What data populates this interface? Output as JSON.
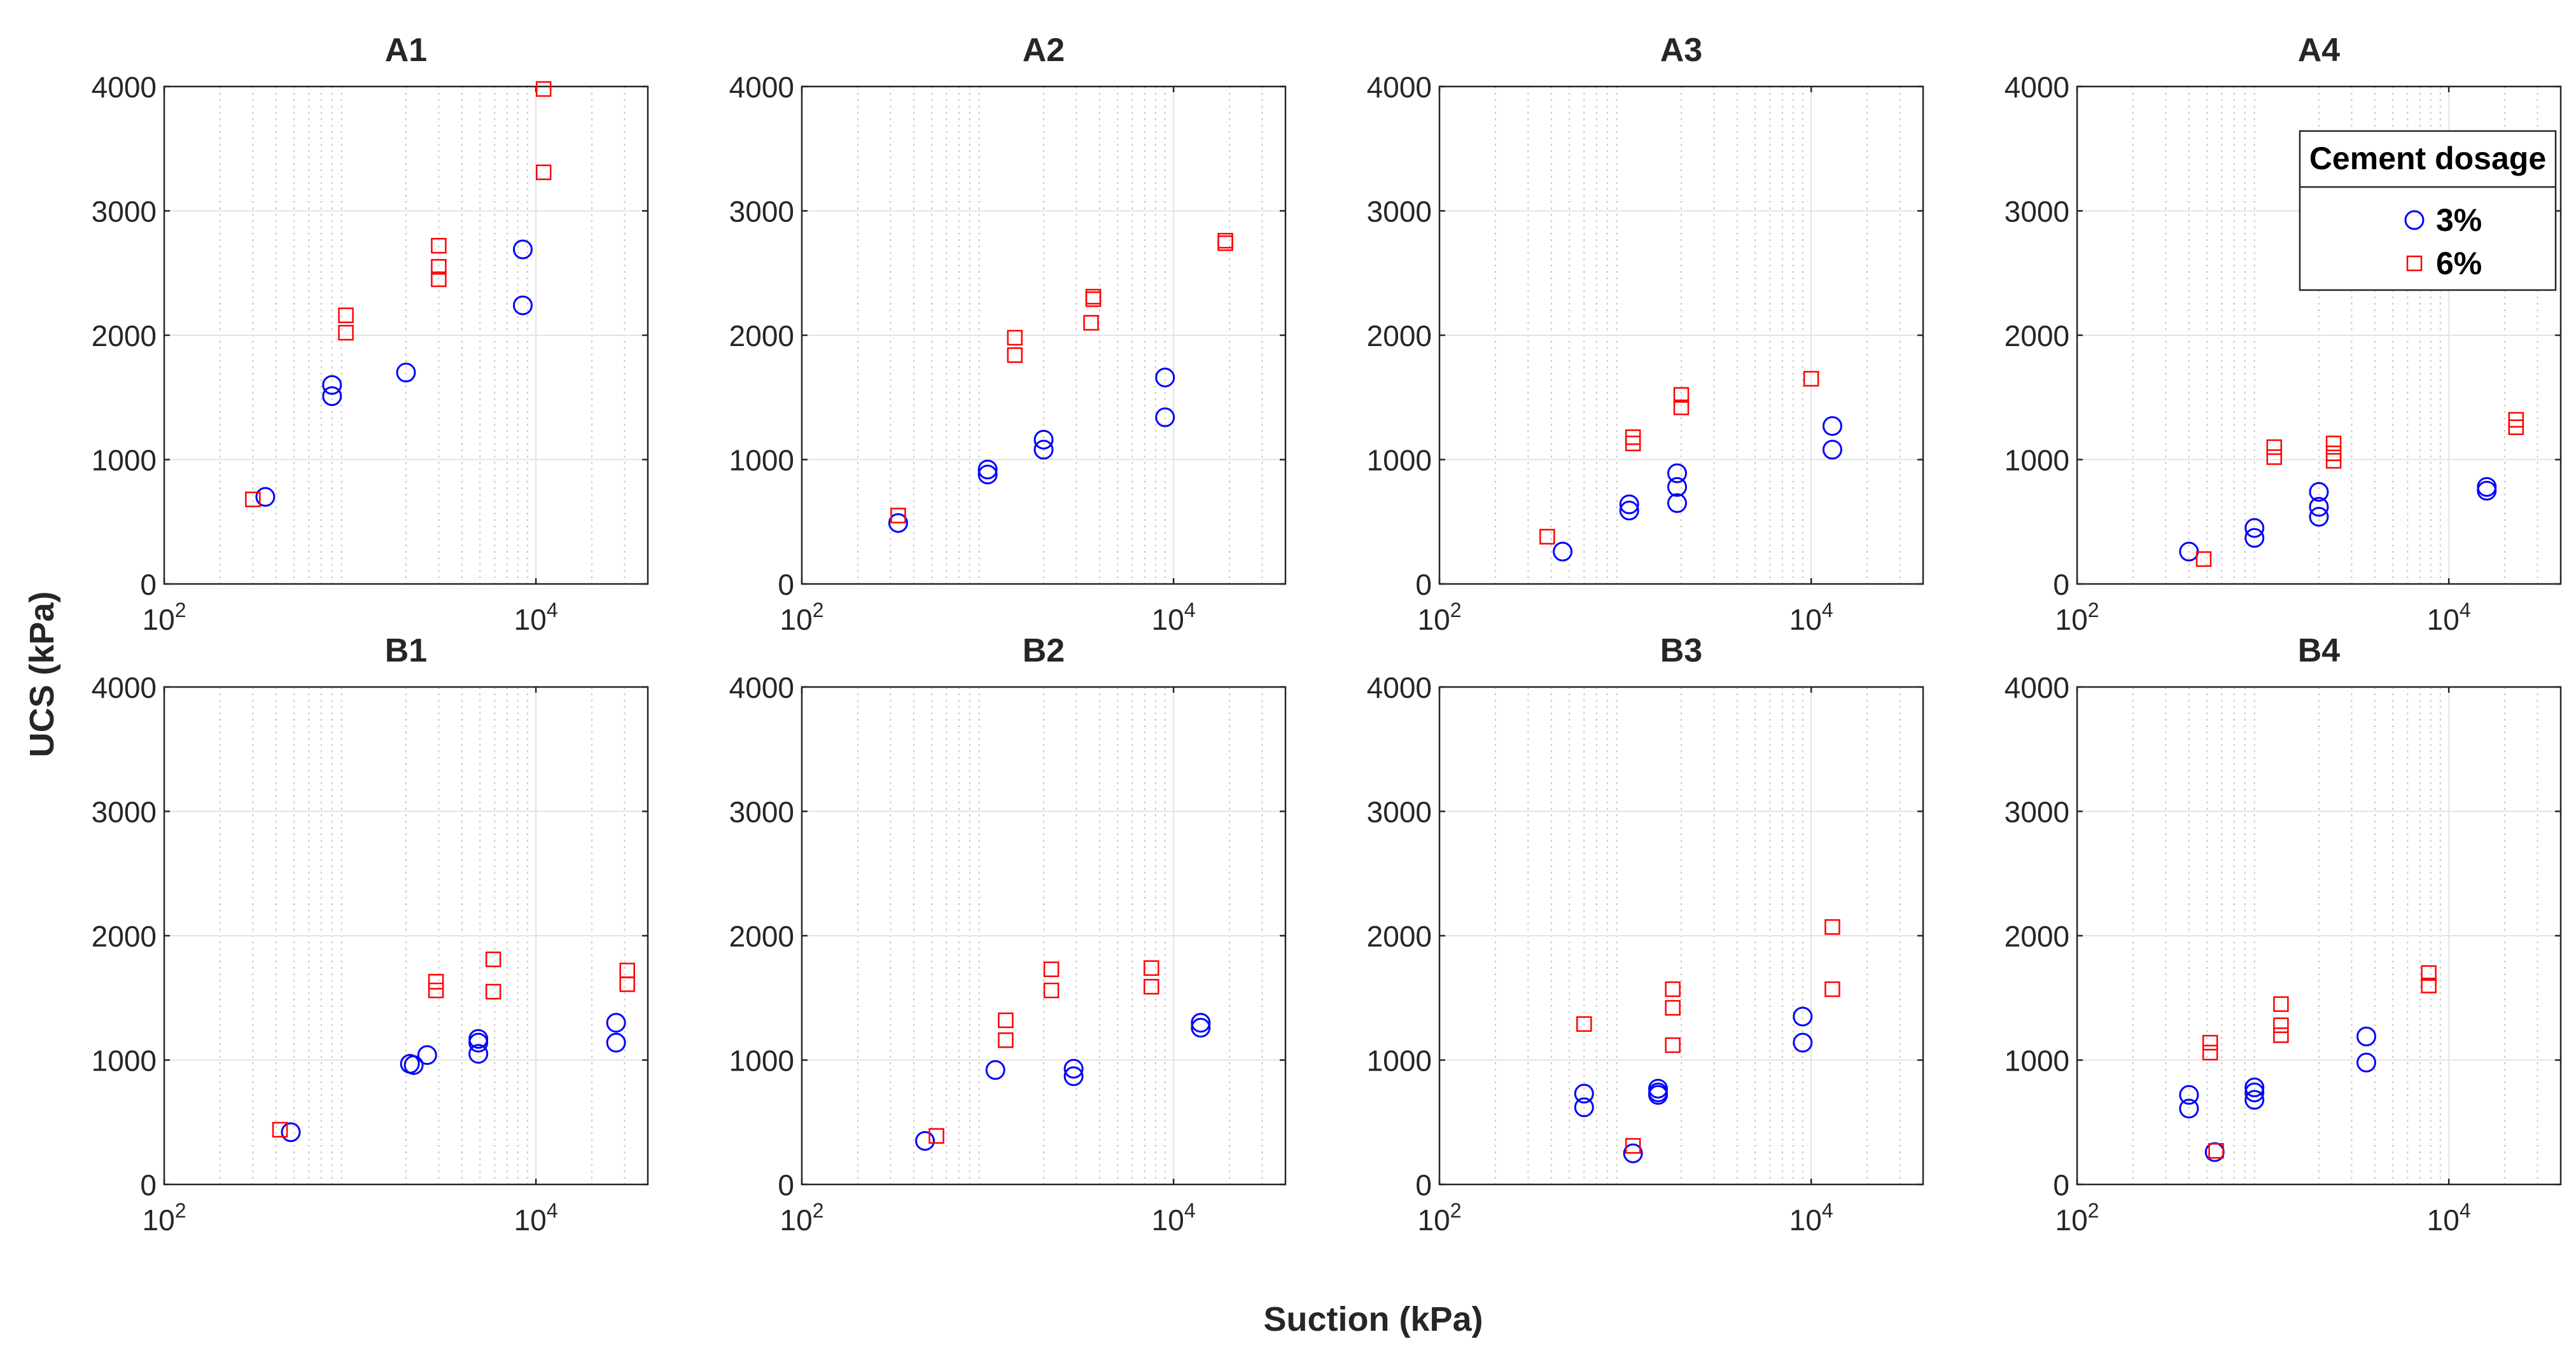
{
  "figure": {
    "xlabel": "Suction (kPa)",
    "ylabel": "UCS (kPa)",
    "colors": {
      "s3": "#0000ff",
      "s6": "#ff0000",
      "axis": "#262626",
      "grid_major": "#e3e3e3",
      "grid_minor": "#c7c7c7"
    },
    "legend": {
      "title": "Cement dosage",
      "entries": [
        "3%",
        "6%"
      ],
      "panel": "A4",
      "placement": "top-right"
    }
  },
  "chart_data": [
    {
      "type": "scatter",
      "title": "A1",
      "xscale": "log",
      "xlim": [
        100,
        40000
      ],
      "ylim": [
        0,
        4000
      ],
      "yticks": [
        "0",
        "1000",
        "2000",
        "3000",
        "4000"
      ],
      "xticks": [
        {
          "base": "10",
          "exp": "2",
          "value": 100
        },
        {
          "base": "10",
          "exp": "4",
          "value": 10000
        }
      ],
      "series": [
        {
          "name": "3%",
          "marker": "circle",
          "points": [
            [
              350,
              700
            ],
            [
              800,
              1600
            ],
            [
              800,
              1510
            ],
            [
              2000,
              1700
            ],
            [
              8500,
              2690
            ],
            [
              8500,
              2240
            ]
          ]
        },
        {
          "name": "6%",
          "marker": "square",
          "points": [
            [
              300,
              680
            ],
            [
              950,
              2160
            ],
            [
              950,
              2020
            ],
            [
              3000,
              2720
            ],
            [
              3000,
              2550
            ],
            [
              3000,
              2450
            ],
            [
              11000,
              3980
            ],
            [
              11000,
              3310
            ]
          ]
        }
      ]
    },
    {
      "type": "scatter",
      "title": "A2",
      "xscale": "log",
      "xlim": [
        100,
        40000
      ],
      "ylim": [
        0,
        4000
      ],
      "yticks": [
        "0",
        "1000",
        "2000",
        "3000",
        "4000"
      ],
      "xticks": [
        {
          "base": "10",
          "exp": "2",
          "value": 100
        },
        {
          "base": "10",
          "exp": "4",
          "value": 10000
        }
      ],
      "series": [
        {
          "name": "3%",
          "marker": "circle",
          "points": [
            [
              330,
              490
            ],
            [
              1000,
              920
            ],
            [
              1000,
              880
            ],
            [
              2000,
              1160
            ],
            [
              2000,
              1080
            ],
            [
              9000,
              1660
            ],
            [
              9000,
              1340
            ]
          ]
        },
        {
          "name": "6%",
          "marker": "square",
          "points": [
            [
              330,
              550
            ],
            [
              1400,
              1980
            ],
            [
              1400,
              1840
            ],
            [
              3700,
              2310
            ],
            [
              3700,
              2290
            ],
            [
              3600,
              2100
            ],
            [
              19000,
              2760
            ],
            [
              19000,
              2740
            ]
          ]
        }
      ]
    },
    {
      "type": "scatter",
      "title": "A3",
      "xscale": "log",
      "xlim": [
        100,
        40000
      ],
      "ylim": [
        0,
        4000
      ],
      "yticks": [
        "0",
        "1000",
        "2000",
        "3000",
        "4000"
      ],
      "xticks": [
        {
          "base": "10",
          "exp": "2",
          "value": 100
        },
        {
          "base": "10",
          "exp": "4",
          "value": 10000
        }
      ],
      "series": [
        {
          "name": "3%",
          "marker": "circle",
          "points": [
            [
              460,
              260
            ],
            [
              1050,
              640
            ],
            [
              1050,
              590
            ],
            [
              1900,
              890
            ],
            [
              1900,
              780
            ],
            [
              1900,
              650
            ],
            [
              13000,
              1270
            ],
            [
              13000,
              1080
            ]
          ]
        },
        {
          "name": "6%",
          "marker": "square",
          "points": [
            [
              380,
              380
            ],
            [
              1100,
              1180
            ],
            [
              1100,
              1130
            ],
            [
              2000,
              1520
            ],
            [
              2000,
              1420
            ],
            [
              10000,
              1650
            ]
          ]
        }
      ]
    },
    {
      "type": "scatter",
      "title": "A4",
      "xscale": "log",
      "xlim": [
        100,
        40000
      ],
      "ylim": [
        0,
        4000
      ],
      "yticks": [
        "0",
        "1000",
        "2000",
        "3000",
        "4000"
      ],
      "xticks": [
        {
          "base": "10",
          "exp": "2",
          "value": 100
        },
        {
          "base": "10",
          "exp": "4",
          "value": 10000
        }
      ],
      "series": [
        {
          "name": "3%",
          "marker": "circle",
          "points": [
            [
              400,
              260
            ],
            [
              900,
              450
            ],
            [
              900,
              370
            ],
            [
              2000,
              740
            ],
            [
              2000,
              620
            ],
            [
              2000,
              540
            ],
            [
              16000,
              780
            ],
            [
              16000,
              750
            ]
          ]
        },
        {
          "name": "6%",
          "marker": "square",
          "points": [
            [
              480,
              200
            ],
            [
              1150,
              1100
            ],
            [
              1150,
              1020
            ],
            [
              2400,
              1130
            ],
            [
              2400,
              1050
            ],
            [
              2400,
              990
            ],
            [
              23000,
              1320
            ],
            [
              23000,
              1260
            ]
          ]
        }
      ]
    },
    {
      "type": "scatter",
      "title": "B1",
      "xscale": "log",
      "xlim": [
        100,
        40000
      ],
      "ylim": [
        0,
        4000
      ],
      "yticks": [
        "0",
        "1000",
        "2000",
        "3000",
        "4000"
      ],
      "xticks": [
        {
          "base": "10",
          "exp": "2",
          "value": 100
        },
        {
          "base": "10",
          "exp": "4",
          "value": 10000
        }
      ],
      "series": [
        {
          "name": "3%",
          "marker": "circle",
          "points": [
            [
              480,
              420
            ],
            [
              2100,
              970
            ],
            [
              2200,
              960
            ],
            [
              2600,
              1040
            ],
            [
              4900,
              1170
            ],
            [
              4900,
              1140
            ],
            [
              4900,
              1050
            ],
            [
              27000,
              1300
            ],
            [
              27000,
              1140
            ]
          ]
        },
        {
          "name": "6%",
          "marker": "square",
          "points": [
            [
              420,
              440
            ],
            [
              2900,
              1630
            ],
            [
              2900,
              1560
            ],
            [
              5900,
              1810
            ],
            [
              5900,
              1550
            ],
            [
              31000,
              1720
            ],
            [
              31000,
              1610
            ]
          ]
        }
      ]
    },
    {
      "type": "scatter",
      "title": "B2",
      "xscale": "log",
      "xlim": [
        100,
        40000
      ],
      "ylim": [
        0,
        4000
      ],
      "yticks": [
        "0",
        "1000",
        "2000",
        "3000",
        "4000"
      ],
      "xticks": [
        {
          "base": "10",
          "exp": "2",
          "value": 100
        },
        {
          "base": "10",
          "exp": "4",
          "value": 10000
        }
      ],
      "series": [
        {
          "name": "3%",
          "marker": "circle",
          "points": [
            [
              460,
              350
            ],
            [
              1100,
              920
            ],
            [
              2900,
              930
            ],
            [
              2900,
              870
            ],
            [
              14000,
              1300
            ],
            [
              14000,
              1260
            ]
          ]
        },
        {
          "name": "6%",
          "marker": "square",
          "points": [
            [
              530,
              390
            ],
            [
              1250,
              1320
            ],
            [
              1250,
              1160
            ],
            [
              2200,
              1730
            ],
            [
              2200,
              1560
            ],
            [
              7600,
              1740
            ],
            [
              7600,
              1590
            ]
          ]
        }
      ]
    },
    {
      "type": "scatter",
      "title": "B3",
      "xscale": "log",
      "xlim": [
        100,
        40000
      ],
      "ylim": [
        0,
        4000
      ],
      "yticks": [
        "0",
        "1000",
        "2000",
        "3000",
        "4000"
      ],
      "xticks": [
        {
          "base": "10",
          "exp": "2",
          "value": 100
        },
        {
          "base": "10",
          "exp": "4",
          "value": 10000
        }
      ],
      "series": [
        {
          "name": "3%",
          "marker": "circle",
          "points": [
            [
              600,
              730
            ],
            [
              600,
              620
            ],
            [
              1100,
              250
            ],
            [
              1500,
              770
            ],
            [
              1500,
              740
            ],
            [
              1500,
              720
            ],
            [
              9000,
              1350
            ],
            [
              9000,
              1140
            ]
          ]
        },
        {
          "name": "6%",
          "marker": "square",
          "points": [
            [
              600,
              1290
            ],
            [
              1100,
              310
            ],
            [
              1800,
              1570
            ],
            [
              1800,
              1420
            ],
            [
              1800,
              1120
            ],
            [
              13000,
              2070
            ],
            [
              13000,
              1570
            ]
          ]
        }
      ]
    },
    {
      "type": "scatter",
      "title": "B4",
      "xscale": "log",
      "xlim": [
        100,
        40000
      ],
      "ylim": [
        0,
        4000
      ],
      "yticks": [
        "0",
        "1000",
        "2000",
        "3000",
        "4000"
      ],
      "xticks": [
        {
          "base": "10",
          "exp": "2",
          "value": 100
        },
        {
          "base": "10",
          "exp": "4",
          "value": 10000
        }
      ],
      "series": [
        {
          "name": "3%",
          "marker": "circle",
          "points": [
            [
              400,
              720
            ],
            [
              400,
              610
            ],
            [
              550,
              260
            ],
            [
              900,
              780
            ],
            [
              900,
              740
            ],
            [
              900,
              680
            ],
            [
              3600,
              1190
            ],
            [
              3600,
              980
            ]
          ]
        },
        {
          "name": "6%",
          "marker": "square",
          "points": [
            [
              520,
              1140
            ],
            [
              520,
              1060
            ],
            [
              560,
              270
            ],
            [
              1250,
              1450
            ],
            [
              1250,
              1280
            ],
            [
              1250,
              1200
            ],
            [
              7800,
              1700
            ],
            [
              7800,
              1600
            ]
          ]
        }
      ]
    }
  ]
}
